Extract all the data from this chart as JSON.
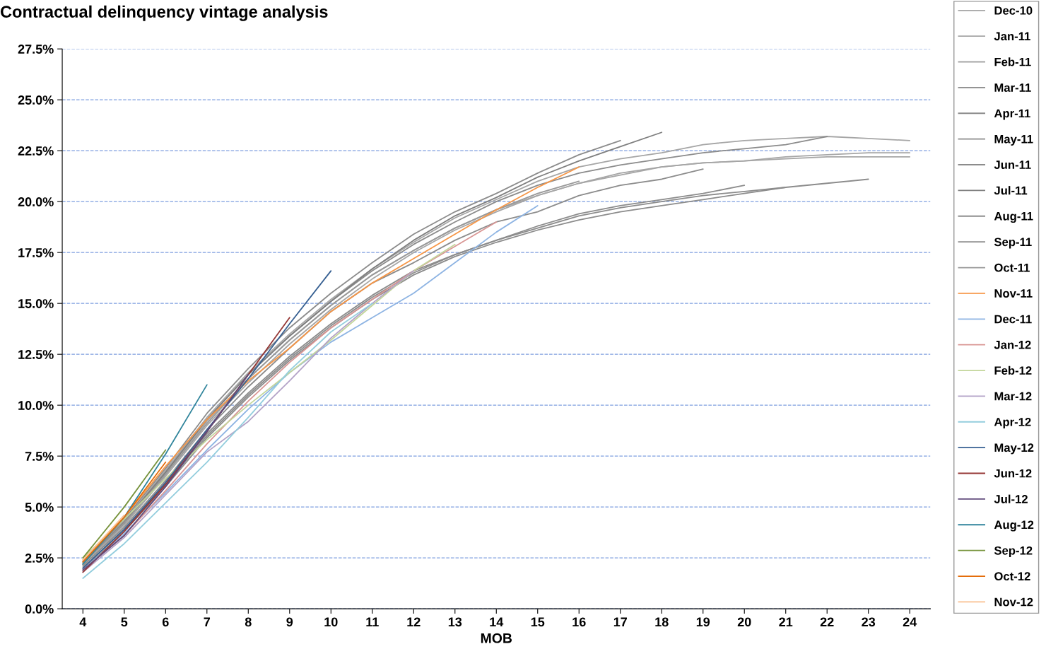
{
  "chart_data": {
    "type": "line",
    "title": "Contractual delinquency vintage analysis",
    "xlabel": "MOB",
    "categories": [
      "4",
      "5",
      "6",
      "7",
      "8",
      "9",
      "10",
      "11",
      "12",
      "13",
      "14",
      "15",
      "16",
      "17",
      "18",
      "19",
      "20",
      "21",
      "22",
      "23",
      "24"
    ],
    "ylim": [
      0,
      27.5
    ],
    "yticks": [
      {
        "value": 0,
        "label": "0.0%"
      },
      {
        "value": 2.5,
        "label": "2.5%"
      },
      {
        "value": 5,
        "label": "5.0%"
      },
      {
        "value": 7.5,
        "label": "7.5%"
      },
      {
        "value": 10,
        "label": "10.0%"
      },
      {
        "value": 12.5,
        "label": "12.5%"
      },
      {
        "value": 15,
        "label": "15.0%"
      },
      {
        "value": 17.5,
        "label": "17.5%"
      },
      {
        "value": 20,
        "label": "20.0%"
      },
      {
        "value": 22.5,
        "label": "22.5%"
      },
      {
        "value": 25,
        "label": "25.0%"
      },
      {
        "value": 27.5,
        "label": "27.5%"
      }
    ],
    "grid": "y",
    "legend": "right",
    "marker": "none",
    "line_style": "solid",
    "series": [
      {
        "name": "Dec-10",
        "color": "#a6a6a6",
        "values": [
          2.2,
          4.2,
          6.6,
          9.2,
          11.3,
          13.2,
          14.9,
          16.4,
          17.6,
          18.7,
          19.6,
          20.3,
          20.9,
          21.3,
          21.7,
          21.9,
          22.0,
          22.2,
          22.3,
          22.4,
          22.4
        ]
      },
      {
        "name": "Jan-11",
        "color": "#a6a6a6",
        "values": [
          2.3,
          4.3,
          6.8,
          9.4,
          11.6,
          13.5,
          15.2,
          16.7,
          18.0,
          19.2,
          20.1,
          21.0,
          21.7,
          22.1,
          22.4,
          22.8,
          23.0,
          23.1,
          23.2,
          23.1,
          23.0
        ]
      },
      {
        "name": "Feb-11",
        "color": "#a6a6a6",
        "values": [
          2.1,
          4.1,
          6.5,
          9.0,
          11.1,
          13.0,
          14.7,
          16.2,
          17.5,
          18.6,
          19.5,
          20.3,
          20.9,
          21.4,
          21.7,
          21.9,
          22.0,
          22.1,
          22.2,
          22.2,
          22.2
        ]
      },
      {
        "name": "Mar-11",
        "color": "#8c8c8c",
        "values": [
          2.2,
          4.3,
          6.7,
          9.3,
          11.5,
          13.4,
          15.1,
          16.6,
          17.9,
          19.0,
          20.0,
          20.8,
          21.4,
          21.8,
          22.1,
          22.4,
          22.6,
          22.8,
          23.2,
          null,
          null
        ]
      },
      {
        "name": "Apr-11",
        "color": "#8c8c8c",
        "values": [
          2.0,
          3.9,
          6.2,
          8.6,
          10.6,
          12.4,
          14.0,
          15.4,
          16.6,
          17.4,
          18.1,
          18.7,
          19.3,
          19.7,
          20.0,
          20.3,
          20.5,
          20.7,
          20.9,
          21.1,
          null
        ]
      },
      {
        "name": "May-11",
        "color": "#8c8c8c",
        "values": [
          1.9,
          3.8,
          6.0,
          8.4,
          10.4,
          12.2,
          13.8,
          15.2,
          16.4,
          17.3,
          18.0,
          18.6,
          19.1,
          19.5,
          19.8,
          20.1,
          20.4,
          20.7,
          null,
          null,
          null
        ]
      },
      {
        "name": "Jun-11",
        "color": "#8c8c8c",
        "values": [
          2.0,
          3.9,
          6.1,
          8.5,
          10.5,
          12.3,
          13.9,
          15.3,
          16.5,
          17.4,
          18.1,
          18.8,
          19.4,
          19.8,
          20.1,
          20.4,
          20.8,
          null,
          null,
          null,
          null
        ]
      },
      {
        "name": "Jul-11",
        "color": "#7f7f7f",
        "values": [
          2.2,
          4.2,
          6.7,
          9.3,
          11.5,
          13.4,
          15.1,
          16.7,
          18.1,
          19.3,
          20.2,
          21.2,
          22.0,
          22.7,
          23.4,
          null,
          null,
          null,
          null,
          null,
          null
        ]
      },
      {
        "name": "Aug-11",
        "color": "#8c8c8c",
        "values": [
          2.1,
          4.0,
          6.3,
          8.8,
          10.9,
          12.8,
          14.6,
          16.0,
          17.0,
          18.1,
          19.0,
          19.5,
          20.3,
          20.8,
          21.1,
          21.6,
          null,
          null,
          null,
          null,
          null
        ]
      },
      {
        "name": "Sep-11",
        "color": "#8c8c8c",
        "values": [
          2.3,
          4.4,
          6.9,
          9.6,
          11.8,
          13.8,
          15.5,
          17.0,
          18.4,
          19.5,
          20.4,
          21.4,
          22.3,
          23.0,
          null,
          null,
          null,
          null,
          null,
          null,
          null
        ]
      },
      {
        "name": "Oct-11",
        "color": "#999999",
        "values": [
          2.2,
          4.2,
          6.6,
          9.1,
          11.3,
          13.2,
          14.9,
          16.4,
          17.6,
          18.7,
          19.6,
          20.4,
          21.0,
          null,
          null,
          null,
          null,
          null,
          null,
          null,
          null
        ]
      },
      {
        "name": "Nov-11",
        "color": "#f79646",
        "values": [
          2.4,
          4.5,
          7.0,
          9.3,
          11.2,
          12.8,
          14.6,
          16.0,
          17.2,
          18.4,
          19.6,
          20.7,
          21.7,
          null,
          null,
          null,
          null,
          null,
          null,
          null,
          null
        ]
      },
      {
        "name": "Dec-11",
        "color": "#8eb4e3",
        "values": [
          1.9,
          3.7,
          5.7,
          7.8,
          9.8,
          11.6,
          13.1,
          14.3,
          15.5,
          17.0,
          18.5,
          19.8,
          null,
          null,
          null,
          null,
          null,
          null,
          null,
          null,
          null
        ]
      },
      {
        "name": "Jan-12",
        "color": "#d99694",
        "values": [
          1.9,
          3.6,
          5.8,
          8.1,
          10.2,
          12.1,
          13.8,
          15.2,
          16.6,
          17.8,
          19.0,
          null,
          null,
          null,
          null,
          null,
          null,
          null,
          null,
          null,
          null
        ]
      },
      {
        "name": "Feb-12",
        "color": "#c3d69b",
        "values": [
          2.5,
          4.4,
          6.4,
          8.3,
          10.0,
          11.6,
          13.2,
          14.9,
          16.6,
          17.9,
          null,
          null,
          null,
          null,
          null,
          null,
          null,
          null,
          null,
          null,
          null
        ]
      },
      {
        "name": "Mar-12",
        "color": "#b3a2c7",
        "values": [
          1.8,
          3.5,
          5.6,
          7.7,
          9.2,
          11.2,
          13.3,
          15.0,
          16.6,
          null,
          null,
          null,
          null,
          null,
          null,
          null,
          null,
          null,
          null,
          null,
          null
        ]
      },
      {
        "name": "Apr-12",
        "color": "#93cddd",
        "values": [
          1.5,
          3.2,
          5.2,
          7.2,
          9.4,
          11.7,
          13.6,
          15.0,
          null,
          null,
          null,
          null,
          null,
          null,
          null,
          null,
          null,
          null,
          null,
          null,
          null
        ]
      },
      {
        "name": "May-12",
        "color": "#376092",
        "values": [
          2.0,
          3.9,
          6.2,
          8.8,
          11.3,
          14.0,
          16.6,
          null,
          null,
          null,
          null,
          null,
          null,
          null,
          null,
          null,
          null,
          null,
          null,
          null,
          null
        ]
      },
      {
        "name": "Jun-12",
        "color": "#953735",
        "values": [
          1.8,
          3.8,
          6.1,
          8.7,
          11.5,
          14.3,
          null,
          null,
          null,
          null,
          null,
          null,
          null,
          null,
          null,
          null,
          null,
          null,
          null,
          null,
          null
        ]
      },
      {
        "name": "Jul-12",
        "color": "#604a7b",
        "values": [
          1.9,
          3.6,
          6.0,
          8.7,
          11.5,
          null,
          null,
          null,
          null,
          null,
          null,
          null,
          null,
          null,
          null,
          null,
          null,
          null,
          null,
          null,
          null
        ]
      },
      {
        "name": "Aug-12",
        "color": "#31859c",
        "values": [
          2.2,
          4.5,
          7.6,
          11.0,
          null,
          null,
          null,
          null,
          null,
          null,
          null,
          null,
          null,
          null,
          null,
          null,
          null,
          null,
          null,
          null,
          null
        ]
      },
      {
        "name": "Sep-12",
        "color": "#77933c",
        "values": [
          2.5,
          5.0,
          7.8,
          null,
          null,
          null,
          null,
          null,
          null,
          null,
          null,
          null,
          null,
          null,
          null,
          null,
          null,
          null,
          null,
          null,
          null
        ]
      },
      {
        "name": "Oct-12",
        "color": "#e46c0a",
        "values": [
          2.3,
          4.5,
          7.2,
          null,
          null,
          null,
          null,
          null,
          null,
          null,
          null,
          null,
          null,
          null,
          null,
          null,
          null,
          null,
          null,
          null,
          null
        ]
      },
      {
        "name": "Nov-12",
        "color": "#fac090",
        "values": [
          2.4,
          4.6,
          null,
          null,
          null,
          null,
          null,
          null,
          null,
          null,
          null,
          null,
          null,
          null,
          null,
          null,
          null,
          null,
          null,
          null,
          null
        ]
      }
    ]
  }
}
